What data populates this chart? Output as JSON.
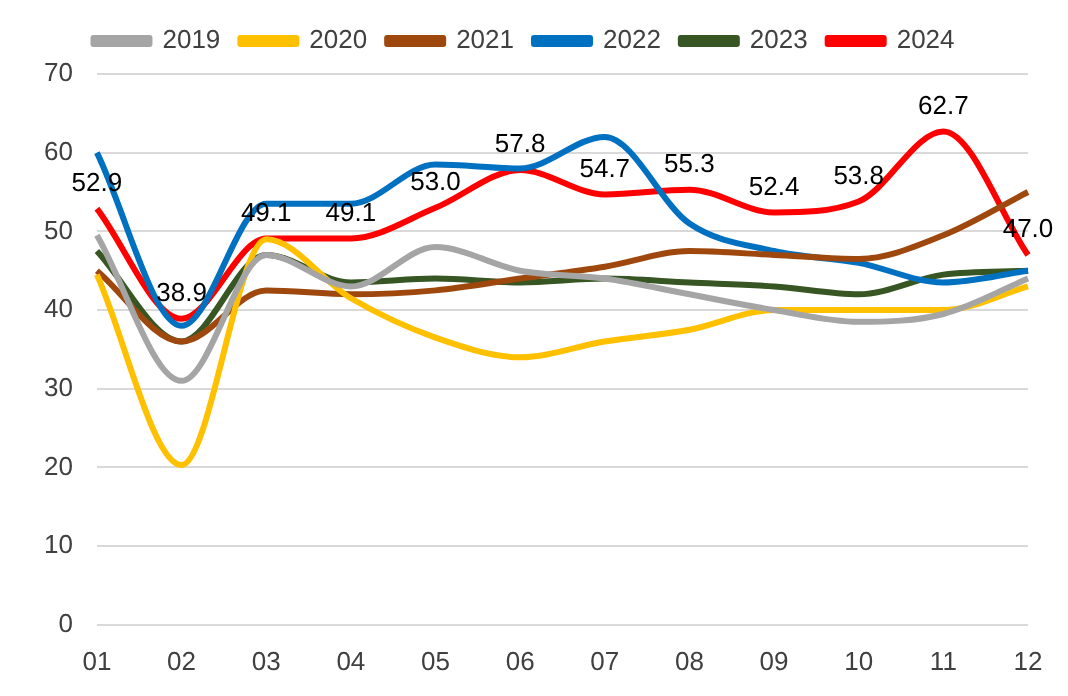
{
  "chart_data": {
    "type": "line",
    "categories": [
      "01",
      "02",
      "03",
      "04",
      "05",
      "06",
      "07",
      "08",
      "09",
      "10",
      "11",
      "12"
    ],
    "series": [
      {
        "name": "2019",
        "color": "#a5a5a5",
        "values": [
          49.5,
          31,
          47,
          43,
          48,
          45,
          44,
          42,
          40,
          38.5,
          39.5,
          44
        ]
      },
      {
        "name": "2020",
        "color": "#ffc000",
        "values": [
          44.5,
          20.3,
          49,
          41.5,
          36.5,
          34,
          36,
          37.5,
          40,
          40,
          40,
          43
        ]
      },
      {
        "name": "2021",
        "color": "#9e480e",
        "values": [
          45,
          36,
          42.5,
          42,
          42.5,
          44,
          45.5,
          47.5,
          47,
          46.5,
          49.5,
          55
        ]
      },
      {
        "name": "2022",
        "color": "#0070c0",
        "values": [
          60,
          38,
          53.5,
          53.5,
          58.5,
          58,
          62,
          51,
          47.5,
          46,
          43.5,
          45
        ]
      },
      {
        "name": "2023",
        "color": "#375623",
        "values": [
          47.5,
          36,
          47,
          43.5,
          44,
          43.5,
          44,
          43.5,
          43,
          42,
          44.5,
          45
        ]
      },
      {
        "name": "2024",
        "color": "#ff0000",
        "values": [
          52.9,
          38.9,
          49.1,
          49.1,
          53.0,
          57.8,
          54.7,
          55.3,
          52.4,
          53.8,
          62.7,
          47.0
        ],
        "value_labels": [
          "52.9",
          "38.9",
          "49.1",
          "49.1",
          "53.0",
          "57.8",
          "54.7",
          "55.3",
          "52.4",
          "53.8",
          "62.7",
          "47.0"
        ]
      }
    ],
    "ylim": [
      0,
      70
    ],
    "yticks": [
      0,
      10,
      20,
      30,
      40,
      50,
      60,
      70
    ],
    "grid": "y",
    "legend": "top"
  }
}
